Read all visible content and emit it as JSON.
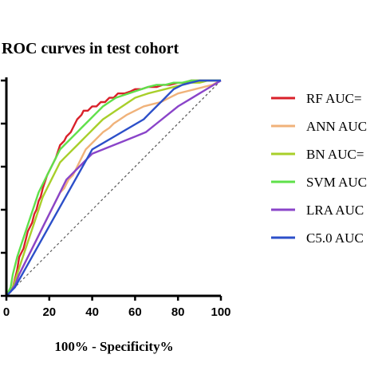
{
  "chart_data": {
    "type": "line",
    "title": "ROC curves in test cohort",
    "xlabel": "100% - Specificity%",
    "ylabel": "",
    "xlim": [
      0,
      100
    ],
    "ylim": [
      0,
      100
    ],
    "xticks": [
      "0",
      "20",
      "40",
      "60",
      "80",
      "100"
    ],
    "legend_position": "right",
    "grid": false,
    "reference_line": {
      "x": [
        0,
        100
      ],
      "y": [
        0,
        100
      ],
      "style": "dashed",
      "color": "#555555"
    },
    "series": [
      {
        "name": "RF AUC=",
        "color": "#d9202a",
        "x": [
          0,
          2,
          3,
          4,
          5,
          6,
          7,
          8,
          9,
          10,
          12,
          13,
          14,
          15,
          16,
          17,
          18,
          19,
          20,
          22,
          23,
          24,
          25,
          27,
          28,
          30,
          31,
          32,
          33,
          35,
          36,
          38,
          40,
          42,
          44,
          46,
          48,
          50,
          52,
          55,
          58,
          60,
          63,
          66,
          70,
          73,
          76,
          80,
          83,
          86,
          90,
          93,
          96,
          100
        ],
        "y": [
          0,
          2,
          4,
          8,
          12,
          18,
          20,
          22,
          26,
          30,
          34,
          38,
          40,
          44,
          46,
          50,
          53,
          56,
          58,
          62,
          64,
          67,
          70,
          72,
          74,
          76,
          78,
          80,
          82,
          84,
          86,
          86,
          88,
          88,
          90,
          90,
          92,
          92,
          94,
          94,
          95,
          96,
          96,
          97,
          97,
          98,
          98,
          99,
          99,
          100,
          100,
          100,
          100,
          100
        ]
      },
      {
        "name": "ANN AUC",
        "color": "#f0b27a",
        "x": [
          0,
          2,
          3,
          5,
          7,
          9,
          11,
          13,
          15,
          17,
          19,
          21,
          23,
          25,
          27,
          29,
          31,
          33,
          35,
          37,
          39,
          41,
          43,
          45,
          48,
          50,
          53,
          56,
          60,
          64,
          68,
          72,
          76,
          80,
          84,
          88,
          92,
          96,
          100
        ],
        "y": [
          0,
          2,
          4,
          8,
          12,
          16,
          20,
          24,
          28,
          32,
          36,
          40,
          44,
          48,
          50,
          54,
          56,
          60,
          64,
          68,
          70,
          72,
          74,
          76,
          78,
          80,
          82,
          84,
          86,
          88,
          89,
          90,
          92,
          94,
          95,
          96,
          97,
          98,
          100
        ]
      },
      {
        "name": "BN AUC=",
        "color": "#a8cf2a",
        "x": [
          0,
          2,
          3,
          5,
          7,
          9,
          11,
          13,
          15,
          17,
          19,
          21,
          23,
          25,
          27,
          29,
          31,
          33,
          35,
          37,
          39,
          41,
          43,
          45,
          48,
          51,
          54,
          57,
          60,
          63,
          66,
          70,
          74,
          78,
          82,
          86,
          90,
          94,
          98,
          100
        ],
        "y": [
          0,
          2,
          4,
          10,
          16,
          22,
          28,
          34,
          40,
          46,
          50,
          54,
          58,
          62,
          64,
          66,
          68,
          70,
          72,
          74,
          76,
          78,
          80,
          82,
          84,
          86,
          88,
          90,
          92,
          93,
          94,
          95,
          96,
          97,
          98,
          99,
          99,
          100,
          100,
          100
        ]
      },
      {
        "name": "SVM AUC",
        "color": "#5fe04a",
        "x": [
          0,
          2,
          3,
          5,
          7,
          9,
          11,
          13,
          15,
          17,
          19,
          21,
          23,
          25,
          27,
          29,
          31,
          33,
          35,
          37,
          39,
          41,
          43,
          45,
          48,
          51,
          54,
          57,
          60,
          63,
          66,
          70,
          74,
          78,
          82,
          86,
          90,
          94,
          98,
          100
        ],
        "y": [
          0,
          4,
          10,
          18,
          24,
          30,
          36,
          42,
          48,
          52,
          56,
          60,
          64,
          68,
          70,
          72,
          74,
          76,
          78,
          80,
          82,
          84,
          86,
          88,
          90,
          92,
          93,
          94,
          95,
          96,
          97,
          98,
          98,
          99,
          99,
          100,
          100,
          100,
          100,
          100
        ]
      },
      {
        "name": "LRA AUC",
        "color": "#8a44c9",
        "x": [
          0,
          2,
          4,
          6,
          8,
          10,
          12,
          14,
          16,
          18,
          20,
          22,
          24,
          26,
          28,
          30,
          32,
          34,
          36,
          38,
          40,
          45,
          50,
          55,
          60,
          65,
          70,
          75,
          80,
          85,
          90,
          95,
          100
        ],
        "y": [
          0,
          2,
          5,
          10,
          14,
          18,
          22,
          26,
          30,
          34,
          38,
          42,
          46,
          50,
          54,
          56,
          58,
          60,
          62,
          64,
          66,
          68,
          70,
          72,
          74,
          76,
          80,
          84,
          88,
          91,
          94,
          97,
          100
        ]
      },
      {
        "name": "C5.0 AUC",
        "color": "#2c4fc9",
        "x": [
          0,
          4,
          40,
          64,
          66,
          70,
          74,
          78,
          82,
          86,
          90,
          100
        ],
        "y": [
          0,
          4,
          68,
          82,
          84,
          88,
          92,
          96,
          98,
          99,
          100,
          100
        ]
      }
    ]
  }
}
